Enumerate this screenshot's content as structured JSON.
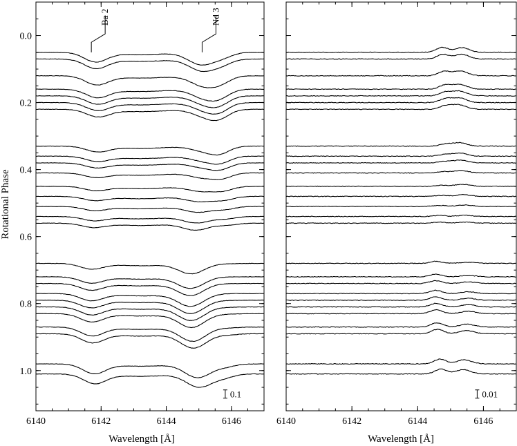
{
  "chart_data": [
    {
      "panel": "left",
      "type": "line",
      "xlabel": "Wavelength [Å]",
      "ylabel": "Rotational Phase",
      "xlim": [
        6140,
        6147
      ],
      "ylim": [
        1.12,
        -0.1
      ],
      "y_inverted": true,
      "xticks": [
        6140,
        6142,
        6144,
        6146
      ],
      "yticks": [
        0.0,
        0.2,
        0.4,
        0.6,
        0.8,
        1.0
      ],
      "ytick_labels": [
        "0.0",
        "0.2",
        "0.4",
        "0.6",
        "0.8",
        "1.0"
      ],
      "scale_bar": {
        "value": 0.1,
        "label": "0.1"
      },
      "annotations": [
        {
          "label": "Ba 2",
          "wavelength": 6141.7
        },
        {
          "label": "Nd 3",
          "wavelength": 6145.1
        }
      ],
      "phases": [
        0.05,
        0.07,
        0.12,
        0.16,
        0.18,
        0.2,
        0.22,
        0.33,
        0.36,
        0.38,
        0.41,
        0.45,
        0.48,
        0.51,
        0.54,
        0.56,
        0.68,
        0.72,
        0.74,
        0.77,
        0.79,
        0.81,
        0.83,
        0.87,
        0.89,
        0.98,
        1.01
      ],
      "spectra_shape": {
        "continuum_offset": 0.0,
        "lines": [
          {
            "name": "Ba 2",
            "center": 6141.8,
            "depth": 0.08,
            "width": 0.35
          },
          {
            "name": "Nd 3",
            "center": 6145.0,
            "depth": 0.1,
            "width": 0.4
          },
          {
            "name": "blend",
            "center": 6145.8,
            "depth": 0.05,
            "width": 0.3
          }
        ]
      }
    },
    {
      "panel": "right",
      "type": "line",
      "xlabel": "Wavelength [Å]",
      "xlim": [
        6140,
        6147
      ],
      "ylim": [
        1.12,
        -0.1
      ],
      "y_inverted": true,
      "xticks": [
        6140,
        6142,
        6144,
        6146
      ],
      "scale_bar": {
        "value": 0.01,
        "label": "0.01"
      },
      "phases": [
        0.05,
        0.07,
        0.12,
        0.16,
        0.18,
        0.2,
        0.22,
        0.33,
        0.36,
        0.38,
        0.41,
        0.45,
        0.48,
        0.51,
        0.54,
        0.56,
        0.68,
        0.72,
        0.74,
        0.77,
        0.79,
        0.81,
        0.83,
        0.87,
        0.89,
        0.98,
        1.01
      ],
      "residual_shape": {
        "features": [
          {
            "center": 6144.7,
            "amplitude": 0.012,
            "width": 0.18
          },
          {
            "center": 6145.4,
            "amplitude": 0.01,
            "width": 0.22
          }
        ]
      }
    }
  ]
}
